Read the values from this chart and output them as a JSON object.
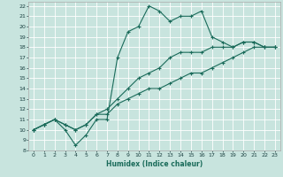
{
  "xlabel": "Humidex (Indice chaleur)",
  "bg_color": "#c8e4de",
  "grid_color": "#ffffff",
  "line_color": "#1a6b5a",
  "xlim": [
    -0.5,
    23.5
  ],
  "ylim": [
    8,
    22.4
  ],
  "xticks": [
    0,
    1,
    2,
    3,
    4,
    5,
    6,
    7,
    8,
    9,
    10,
    11,
    12,
    13,
    14,
    15,
    16,
    17,
    18,
    19,
    20,
    21,
    22,
    23
  ],
  "yticks": [
    8,
    9,
    10,
    11,
    12,
    13,
    14,
    15,
    16,
    17,
    18,
    19,
    20,
    21,
    22
  ],
  "series": [
    {
      "x": [
        0,
        1,
        2,
        3,
        4,
        5,
        6,
        7,
        8,
        9,
        10,
        11,
        12,
        13,
        14,
        15,
        16,
        17,
        18,
        19,
        20,
        21,
        22,
        23
      ],
      "y": [
        10,
        10.5,
        11,
        10,
        8.5,
        9.5,
        11,
        11,
        17,
        19.5,
        20,
        22,
        21.5,
        20.5,
        21,
        21,
        21.5,
        19,
        18.5,
        18,
        18.5,
        18.5,
        18,
        18
      ]
    },
    {
      "x": [
        0,
        1,
        2,
        3,
        4,
        5,
        6,
        7,
        8,
        9,
        10,
        11,
        12,
        13,
        14,
        15,
        16,
        17,
        18,
        19,
        20,
        21,
        22,
        23
      ],
      "y": [
        10,
        10.5,
        11,
        10.5,
        10,
        10.5,
        11.5,
        12,
        13,
        14,
        15,
        15.5,
        16,
        17,
        17.5,
        17.5,
        17.5,
        18,
        18,
        18,
        18.5,
        18.5,
        18,
        18
      ]
    },
    {
      "x": [
        0,
        1,
        2,
        3,
        4,
        5,
        6,
        7,
        8,
        9,
        10,
        11,
        12,
        13,
        14,
        15,
        16,
        17,
        18,
        19,
        20,
        21,
        22,
        23
      ],
      "y": [
        10,
        10.5,
        11,
        10.5,
        10,
        10.5,
        11.5,
        11.5,
        12.5,
        13,
        13.5,
        14,
        14,
        14.5,
        15,
        15.5,
        15.5,
        16,
        16.5,
        17,
        17.5,
        18,
        18,
        18
      ]
    }
  ]
}
